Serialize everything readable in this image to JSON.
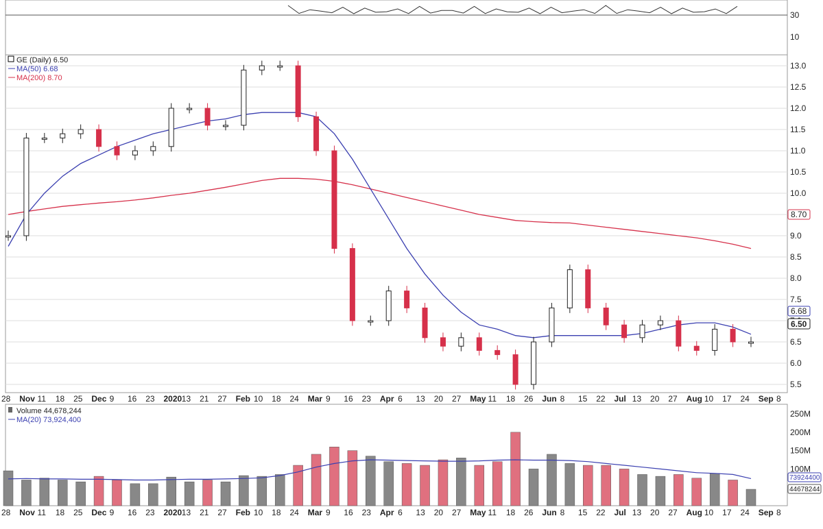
{
  "colors": {
    "up": "#ffffff",
    "down": "#d6304a",
    "ma50": "#3a3fb0",
    "ma200": "#d6304a",
    "vol_up": "#888888",
    "vol_down": "#e0707f",
    "grid": "#dddddd"
  },
  "rsi_panel": {
    "levels": [
      "30",
      "10"
    ]
  },
  "price_panel": {
    "icon": "chart-icon",
    "legend_main": "GE (Daily) 6.50",
    "legend_ma50": "MA(50) 6.68",
    "legend_ma200": "MA(200) 8.70",
    "badge_ma200": "8.70",
    "badge_ma50": "6.68",
    "badge_last": "6.50",
    "yticks": [
      "13.0",
      "12.5",
      "12.0",
      "11.5",
      "11.0",
      "10.5",
      "10.0",
      "9.5",
      "9.0",
      "8.5",
      "8.0",
      "7.5",
      "7.0",
      "6.5",
      "6.0",
      "5.5"
    ]
  },
  "volume_panel": {
    "legend_main": "Volume 44,678,244",
    "legend_ma20": "MA(20) 73,924,400",
    "badge_ma20": "73924400",
    "badge_vol": "44678244",
    "yticks": [
      "250M",
      "200M",
      "150M",
      "100M"
    ]
  },
  "xaxis": {
    "labels": [
      "28",
      "Nov",
      "11",
      "18",
      "25",
      "Dec",
      "9",
      "16",
      "23",
      "2020",
      "13",
      "21",
      "27",
      "Feb",
      "10",
      "18",
      "24",
      "Mar",
      "9",
      "16",
      "23",
      "Apr",
      "6",
      "13",
      "20",
      "27",
      "May",
      "11",
      "18",
      "26",
      "Jun",
      "8",
      "15",
      "22",
      "Jul",
      "13",
      "20",
      "27",
      "Aug",
      "10",
      "17",
      "24",
      "Sep",
      "8"
    ]
  },
  "chart_data": {
    "type": "candlestick",
    "ticker": "GE",
    "title": "GE (Daily) 6.50",
    "period": "Daily",
    "ylim": [
      5.4,
      13.2
    ],
    "last_close": 6.5,
    "series": [
      {
        "name": "MA(50) 6.68",
        "last": 6.68
      },
      {
        "name": "MA(200) 8.70",
        "last": 8.7
      },
      {
        "name": "Volume 44,678,244",
        "last": 44678244
      },
      {
        "name": "MA(20) 73,924,400",
        "last": 73924400
      }
    ],
    "x": [
      "Oct 28",
      "Nov",
      "Nov 11",
      "Nov 18",
      "Nov 25",
      "Dec",
      "Dec 9",
      "Dec 16",
      "Dec 23",
      "2020",
      "Jan 13",
      "Jan 21",
      "Jan 27",
      "Feb",
      "Feb 10",
      "Feb 18",
      "Feb 24",
      "Mar",
      "Mar 9",
      "Mar 16",
      "Mar 23",
      "Apr",
      "Apr 6",
      "Apr 13",
      "Apr 20",
      "Apr 27",
      "May",
      "May 11",
      "May 18",
      "May 26",
      "Jun",
      "Jun 8",
      "Jun 15",
      "Jun 22",
      "Jul",
      "Jul 13",
      "Jul 20",
      "Jul 27",
      "Aug",
      "Aug 10",
      "Aug 17",
      "Aug 24"
    ],
    "close": [
      9.0,
      11.3,
      11.3,
      11.4,
      11.5,
      11.1,
      10.9,
      11.0,
      11.1,
      12.0,
      12.0,
      11.6,
      11.6,
      12.9,
      13.0,
      13.0,
      11.8,
      11.0,
      8.7,
      7.0,
      7.0,
      7.7,
      7.3,
      6.6,
      6.4,
      6.6,
      6.3,
      6.2,
      5.5,
      6.5,
      7.3,
      8.2,
      7.3,
      6.9,
      6.6,
      6.9,
      7.0,
      6.4,
      6.3,
      6.8,
      6.5,
      6.5
    ],
    "ma50": [
      8.75,
      9.5,
      10.0,
      10.4,
      10.7,
      10.9,
      11.1,
      11.25,
      11.4,
      11.5,
      11.6,
      11.7,
      11.75,
      11.85,
      11.9,
      11.9,
      11.9,
      11.8,
      11.4,
      10.8,
      10.1,
      9.4,
      8.7,
      8.1,
      7.6,
      7.2,
      6.9,
      6.8,
      6.65,
      6.6,
      6.65,
      6.65,
      6.65,
      6.65,
      6.65,
      6.7,
      6.8,
      6.9,
      6.95,
      6.95,
      6.85,
      6.68
    ],
    "ma200": [
      9.5,
      9.57,
      9.63,
      9.69,
      9.73,
      9.77,
      9.8,
      9.84,
      9.89,
      9.95,
      10.0,
      10.07,
      10.14,
      10.22,
      10.3,
      10.35,
      10.35,
      10.33,
      10.28,
      10.2,
      10.1,
      10.0,
      9.9,
      9.8,
      9.7,
      9.6,
      9.5,
      9.43,
      9.36,
      9.33,
      9.31,
      9.3,
      9.25,
      9.2,
      9.15,
      9.1,
      9.05,
      9.0,
      8.95,
      8.88,
      8.8,
      8.7
    ],
    "volume_millions": [
      95,
      70,
      75,
      70,
      65,
      80,
      70,
      60,
      60,
      78,
      65,
      70,
      65,
      82,
      80,
      85,
      110,
      140,
      160,
      150,
      135,
      120,
      115,
      110,
      125,
      130,
      110,
      120,
      200,
      100,
      140,
      115,
      110,
      110,
      100,
      85,
      80,
      85,
      75,
      88,
      70,
      44.7
    ],
    "vol20_millions": [
      73,
      74,
      73,
      73,
      72,
      72,
      71,
      70,
      70,
      71,
      72,
      72,
      73,
      74,
      76,
      82,
      92,
      105,
      115,
      122,
      125,
      124,
      123,
      122,
      121,
      121,
      122,
      124,
      125,
      124,
      124,
      123,
      120,
      115,
      110,
      105,
      100,
      95,
      90,
      88,
      85,
      73.9
    ]
  }
}
